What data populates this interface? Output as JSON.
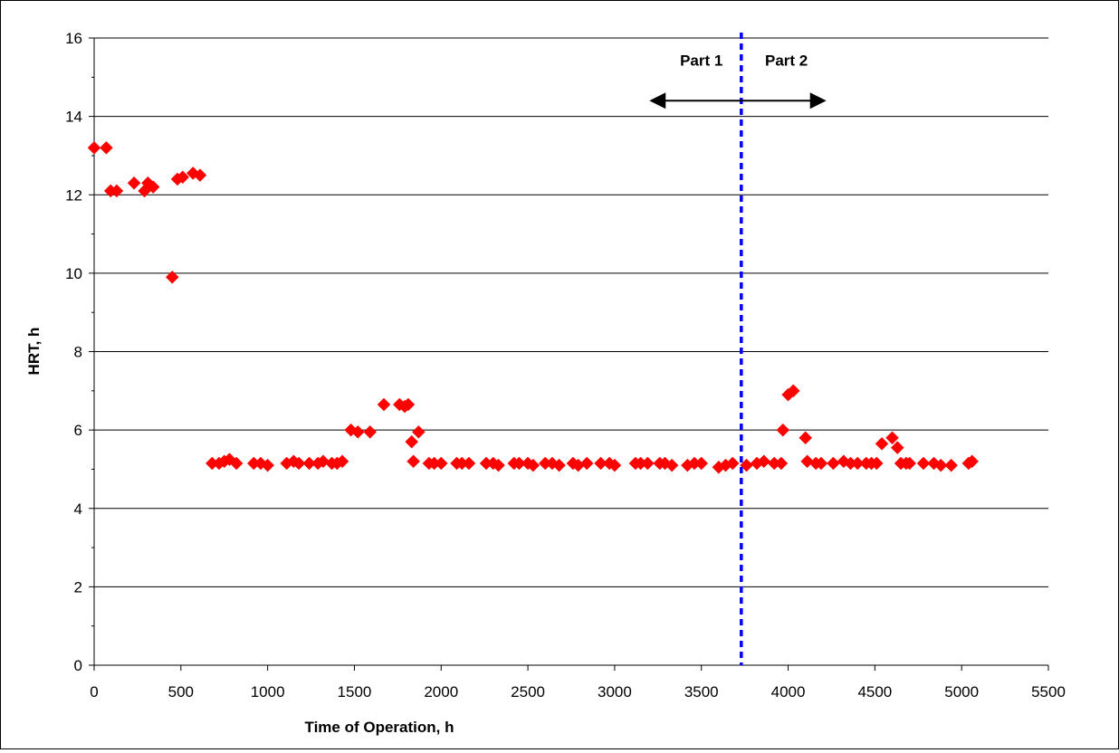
{
  "chart_data": {
    "type": "scatter",
    "title": "",
    "xlabel": "Time of Operation, h",
    "ylabel": "HRT, h",
    "xlim": [
      0,
      5500
    ],
    "ylim": [
      0,
      16
    ],
    "xticks": [
      0,
      500,
      1000,
      1500,
      2000,
      2500,
      3000,
      3500,
      4000,
      4500,
      5000,
      5500
    ],
    "yticks": [
      0,
      2,
      4,
      6,
      8,
      10,
      12,
      14,
      16
    ],
    "grid": "horizontal major gridlines",
    "legend": "none",
    "marker": "diamond",
    "marker_color": "#FF0000",
    "divider": {
      "x": 3730,
      "style": "dashed",
      "color": "#0000FF"
    },
    "annotations": [
      {
        "text": "Part 1",
        "x": 3500,
        "y": 15.3
      },
      {
        "text": "Part 2",
        "x": 3990,
        "y": 15.3
      }
    ],
    "arrow": {
      "x_start": 3200,
      "x_end": 4220,
      "y": 14.4,
      "color": "#000000"
    },
    "series": [
      {
        "points": [
          [
            0,
            13.2
          ],
          [
            70,
            13.2
          ],
          [
            95,
            12.1
          ],
          [
            130,
            12.1
          ],
          [
            230,
            12.3
          ],
          [
            290,
            12.1
          ],
          [
            310,
            12.3
          ],
          [
            340,
            12.2
          ],
          [
            450,
            9.9
          ],
          [
            480,
            12.4
          ],
          [
            510,
            12.45
          ],
          [
            570,
            12.55
          ],
          [
            610,
            12.5
          ],
          [
            680,
            5.15
          ],
          [
            720,
            5.15
          ],
          [
            750,
            5.2
          ],
          [
            780,
            5.25
          ],
          [
            820,
            5.15
          ],
          [
            920,
            5.15
          ],
          [
            960,
            5.15
          ],
          [
            1000,
            5.1
          ],
          [
            1110,
            5.15
          ],
          [
            1150,
            5.2
          ],
          [
            1180,
            5.15
          ],
          [
            1240,
            5.15
          ],
          [
            1290,
            5.15
          ],
          [
            1320,
            5.2
          ],
          [
            1370,
            5.15
          ],
          [
            1400,
            5.15
          ],
          [
            1430,
            5.2
          ],
          [
            1480,
            6.0
          ],
          [
            1520,
            5.95
          ],
          [
            1590,
            5.95
          ],
          [
            1670,
            6.65
          ],
          [
            1760,
            6.65
          ],
          [
            1790,
            6.6
          ],
          [
            1810,
            6.65
          ],
          [
            1830,
            5.7
          ],
          [
            1840,
            5.2
          ],
          [
            1870,
            5.95
          ],
          [
            1930,
            5.15
          ],
          [
            1960,
            5.15
          ],
          [
            2000,
            5.15
          ],
          [
            2090,
            5.15
          ],
          [
            2120,
            5.15
          ],
          [
            2160,
            5.15
          ],
          [
            2260,
            5.15
          ],
          [
            2300,
            5.15
          ],
          [
            2330,
            5.1
          ],
          [
            2420,
            5.15
          ],
          [
            2450,
            5.15
          ],
          [
            2500,
            5.15
          ],
          [
            2530,
            5.1
          ],
          [
            2600,
            5.15
          ],
          [
            2640,
            5.15
          ],
          [
            2680,
            5.1
          ],
          [
            2760,
            5.15
          ],
          [
            2790,
            5.1
          ],
          [
            2840,
            5.15
          ],
          [
            2920,
            5.15
          ],
          [
            2970,
            5.15
          ],
          [
            3000,
            5.1
          ],
          [
            3120,
            5.15
          ],
          [
            3150,
            5.15
          ],
          [
            3190,
            5.15
          ],
          [
            3260,
            5.15
          ],
          [
            3290,
            5.15
          ],
          [
            3330,
            5.1
          ],
          [
            3420,
            5.1
          ],
          [
            3460,
            5.15
          ],
          [
            3500,
            5.15
          ],
          [
            3600,
            5.05
          ],
          [
            3640,
            5.1
          ],
          [
            3680,
            5.15
          ],
          [
            3760,
            5.1
          ],
          [
            3820,
            5.15
          ],
          [
            3860,
            5.2
          ],
          [
            3920,
            5.15
          ],
          [
            3960,
            5.15
          ],
          [
            3970,
            6.0
          ],
          [
            4000,
            6.9
          ],
          [
            4030,
            7.0
          ],
          [
            4100,
            5.8
          ],
          [
            4110,
            5.2
          ],
          [
            4160,
            5.15
          ],
          [
            4190,
            5.15
          ],
          [
            4260,
            5.15
          ],
          [
            4320,
            5.2
          ],
          [
            4360,
            5.15
          ],
          [
            4400,
            5.15
          ],
          [
            4450,
            5.15
          ],
          [
            4480,
            5.15
          ],
          [
            4510,
            5.15
          ],
          [
            4540,
            5.65
          ],
          [
            4600,
            5.8
          ],
          [
            4630,
            5.55
          ],
          [
            4650,
            5.15
          ],
          [
            4680,
            5.15
          ],
          [
            4700,
            5.15
          ],
          [
            4780,
            5.15
          ],
          [
            4840,
            5.15
          ],
          [
            4880,
            5.1
          ],
          [
            4940,
            5.1
          ],
          [
            5040,
            5.15
          ],
          [
            5060,
            5.2
          ]
        ]
      }
    ]
  }
}
